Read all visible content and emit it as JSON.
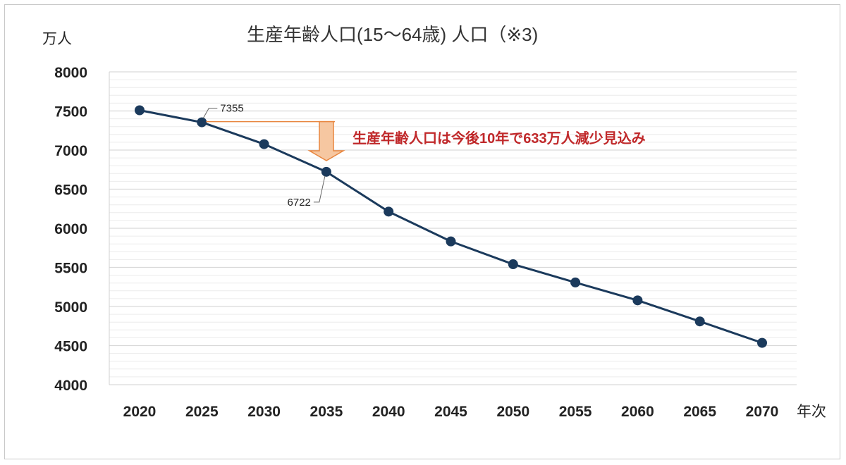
{
  "chart_data": {
    "type": "line",
    "title": "生産年齢人口(15～64歳) 人口（※3)",
    "ylabel": "万人",
    "xlabel": "年次",
    "x": [
      "2020",
      "2025",
      "2030",
      "2035",
      "2040",
      "2045",
      "2050",
      "2055",
      "2060",
      "2065",
      "2070"
    ],
    "series": [
      {
        "values": [
          7509,
          7355,
          7076,
          6722,
          6213,
          5832,
          5540,
          5307,
          5078,
          4809,
          4535
        ]
      }
    ],
    "ylim": [
      4000,
      8000
    ],
    "yticks": [
      "4000",
      "4500",
      "5000",
      "5500",
      "6000",
      "6500",
      "7000",
      "7500",
      "8000"
    ],
    "grid": true,
    "data_labels": [
      {
        "text": "7355"
      },
      {
        "text": "6722"
      }
    ],
    "annotation": {
      "text": "生産年齢人口は今後10年で633万人減少見込み"
    },
    "colors": {
      "line": "#1b3a5c",
      "marker": "#1b3a5c",
      "annotation_text": "#c0282a",
      "arrow_fill": "#f6c7a1",
      "arrow_stroke": "#e8863f",
      "grid": "#d9d9d9"
    }
  }
}
